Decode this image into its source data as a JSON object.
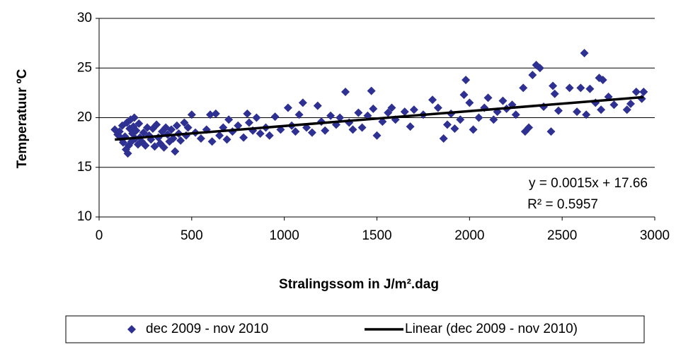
{
  "chart_data": {
    "type": "scatter",
    "x_label": "Stralingssom in J/m².dag",
    "y_label": "Temperatuur ºC",
    "xlim": [
      0,
      3000
    ],
    "xticks": [
      0,
      500,
      1000,
      1500,
      2000,
      2500,
      3000
    ],
    "ylim": [
      10,
      30
    ],
    "yticks": [
      10,
      15,
      20,
      25,
      30
    ],
    "grid": true,
    "legend": "bottom",
    "annotations": [
      "y = 0.0015x + 17.66",
      "R² = 0.5957"
    ],
    "series": [
      {
        "name": "dec 2009 - nov 2010",
        "type": "scatter",
        "color": "#2e3192",
        "x": [
          85,
          100,
          110,
          120,
          125,
          130,
          140,
          145,
          150,
          155,
          160,
          165,
          170,
          175,
          180,
          185,
          190,
          195,
          200,
          210,
          215,
          220,
          230,
          240,
          250,
          260,
          270,
          280,
          290,
          300,
          310,
          320,
          330,
          340,
          350,
          360,
          370,
          380,
          390,
          400,
          410,
          420,
          430,
          440,
          460,
          470,
          480,
          500,
          520,
          550,
          580,
          600,
          610,
          630,
          650,
          670,
          690,
          700,
          720,
          750,
          780,
          800,
          810,
          830,
          850,
          870,
          900,
          920,
          950,
          980,
          1020,
          1040,
          1060,
          1080,
          1100,
          1120,
          1150,
          1180,
          1200,
          1220,
          1250,
          1280,
          1300,
          1330,
          1350,
          1370,
          1400,
          1420,
          1450,
          1470,
          1480,
          1500,
          1530,
          1560,
          1580,
          1600,
          1650,
          1680,
          1700,
          1750,
          1800,
          1830,
          1860,
          1880,
          1900,
          1920,
          1950,
          1970,
          1980,
          2000,
          2020,
          2050,
          2080,
          2100,
          2130,
          2150,
          2180,
          2200,
          2230,
          2250,
          2290,
          2300,
          2320,
          2340,
          2360,
          2380,
          2400,
          2440,
          2450,
          2460,
          2480,
          2540,
          2580,
          2600,
          2620,
          2630,
          2650,
          2680,
          2700,
          2710,
          2720,
          2750,
          2780,
          2850,
          2870,
          2900,
          2940,
          2930
        ],
        "values": [
          18.8,
          18.3,
          18.6,
          17.9,
          19.2,
          17.5,
          18.1,
          16.8,
          19.5,
          16.4,
          17.2,
          18.9,
          19.8,
          17.6,
          18.4,
          19.1,
          20.0,
          17.9,
          18.7,
          17.3,
          19.4,
          18.0,
          17.6,
          18.5,
          17.2,
          19.0,
          18.2,
          17.8,
          18.9,
          17.1,
          19.3,
          18.0,
          17.4,
          18.6,
          17.0,
          19.0,
          18.3,
          17.6,
          18.8,
          17.9,
          16.6,
          19.2,
          18.4,
          17.7,
          19.5,
          18.2,
          19.0,
          20.3,
          18.5,
          17.9,
          18.8,
          20.3,
          17.6,
          20.4,
          18.2,
          19.0,
          17.8,
          19.8,
          18.6,
          19.2,
          18.0,
          20.4,
          19.5,
          18.7,
          20.0,
          18.4,
          19.0,
          18.2,
          20.1,
          18.8,
          21.0,
          19.2,
          18.6,
          20.3,
          21.5,
          19.0,
          18.5,
          21.2,
          19.6,
          18.7,
          20.2,
          19.3,
          20.0,
          22.6,
          19.5,
          18.8,
          20.5,
          19.0,
          20.2,
          22.7,
          20.9,
          18.2,
          19.6,
          20.5,
          21.0,
          19.8,
          20.6,
          19.1,
          20.8,
          20.3,
          21.8,
          21.0,
          17.9,
          19.3,
          20.4,
          18.9,
          19.8,
          22.3,
          23.8,
          21.5,
          18.8,
          20.0,
          21.0,
          22.0,
          19.8,
          20.6,
          21.7,
          20.9,
          21.3,
          20.3,
          23.0,
          18.6,
          19.0,
          24.3,
          25.3,
          25.0,
          21.1,
          18.6,
          23.2,
          22.4,
          20.7,
          23.0,
          20.6,
          23.0,
          26.5,
          20.3,
          22.9,
          21.5,
          24.0,
          20.8,
          23.8,
          22.1,
          21.3,
          20.8,
          21.4,
          22.6,
          22.6,
          21.9
        ]
      },
      {
        "name": "Linear (dec 2009 - nov 2010)",
        "type": "line",
        "color": "#000000",
        "x": [
          85,
          2940
        ],
        "values": [
          17.79,
          22.07
        ]
      }
    ]
  }
}
